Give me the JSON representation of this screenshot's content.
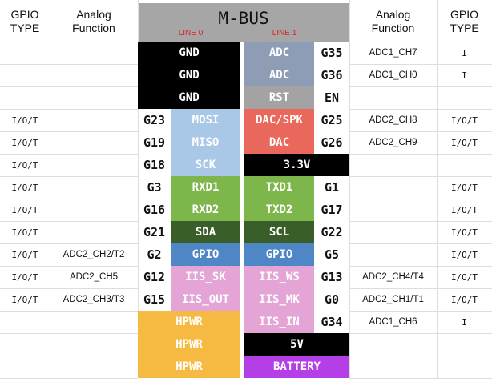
{
  "header": {
    "left_type": "GPIO\nTYPE",
    "left_analog": "Analog\nFunction",
    "title": "M-BUS",
    "line0": "LINE 0",
    "line1": "LINE 1",
    "right_analog": "Analog\nFunction",
    "right_type": "GPIO\nTYPE"
  },
  "rows": [
    {
      "left_pin": "GND",
      "left_color": "#000000",
      "right_pin": "ADC",
      "right_color": "#8e9cb6",
      "right_gpio": "G35",
      "right_analog": "ADC1_CH7",
      "right_type": "I"
    },
    {
      "left_pin": "GND",
      "left_color": "#000000",
      "right_pin": "ADC",
      "right_color": "#8e9cb6",
      "right_gpio": "G36",
      "right_analog": "ADC1_CH0",
      "right_type": "I"
    },
    {
      "left_pin": "GND",
      "left_color": "#000000",
      "right_pin": "RST",
      "right_color": "#a3a3a3",
      "right_gpio": "EN"
    },
    {
      "left_type": "I/O/T",
      "left_gpio": "G23",
      "left_pin": "MOSI",
      "left_color": "#a9c8e8",
      "right_pin": "DAC/SPK",
      "right_color": "#ea675b",
      "right_gpio": "G25",
      "right_analog": "ADC2_CH8",
      "right_type": "I/O/T"
    },
    {
      "left_type": "I/O/T",
      "left_gpio": "G19",
      "left_pin": "MISO",
      "left_color": "#a9c8e8",
      "right_pin": "DAC",
      "right_color": "#ea675b",
      "right_gpio": "G26",
      "right_analog": "ADC2_CH9",
      "right_type": "I/O/T"
    },
    {
      "left_type": "I/O/T",
      "left_gpio": "G18",
      "left_pin": "SCK",
      "left_color": "#a9c8e8",
      "right_pin": "3.3V",
      "right_color": "#000000"
    },
    {
      "left_type": "I/O/T",
      "left_gpio": "G3",
      "left_pin": "RXD1",
      "left_color": "#7db64b",
      "right_pin": "TXD1",
      "right_color": "#7db64b",
      "right_gpio": "G1",
      "right_type": "I/O/T"
    },
    {
      "left_type": "I/O/T",
      "left_gpio": "G16",
      "left_pin": "RXD2",
      "left_color": "#7db64b",
      "right_pin": "TXD2",
      "right_color": "#7db64b",
      "right_gpio": "G17",
      "right_type": "I/O/T"
    },
    {
      "left_type": "I/O/T",
      "left_gpio": "G21",
      "left_pin": "SDA",
      "left_color": "#3a5e2a",
      "right_pin": "SCL",
      "right_color": "#3a5e2a",
      "right_gpio": "G22",
      "right_type": "I/O/T"
    },
    {
      "left_type": "I/O/T",
      "left_analog": "ADC2_CH2/T2",
      "left_gpio": "G2",
      "left_pin": "GPIO",
      "left_color": "#4f86c6",
      "right_pin": "GPIO",
      "right_color": "#4f86c6",
      "right_gpio": "G5",
      "right_type": "I/O/T"
    },
    {
      "left_type": "I/O/T",
      "left_analog": "ADC2_CH5",
      "left_gpio": "G12",
      "left_pin": "IIS_SK",
      "left_color": "#e4a5d6",
      "right_pin": "IIS_WS",
      "right_color": "#e4a5d6",
      "right_gpio": "G13",
      "right_analog": "ADC2_CH4/T4",
      "right_type": "I/O/T"
    },
    {
      "left_type": "I/O/T",
      "left_analog": "ADC2_CH3/T3",
      "left_gpio": "G15",
      "left_pin": "IIS_OUT",
      "left_color": "#e4a5d6",
      "right_pin": "IIS_MK",
      "right_color": "#e4a5d6",
      "right_gpio": "G0",
      "right_analog": "ADC2_CH1/T1",
      "right_type": "I/O/T"
    },
    {
      "left_pin": "HPWR",
      "left_color": "#f6ba42",
      "right_pin": "IIS_IN",
      "right_color": "#e4a5d6",
      "right_gpio": "G34",
      "right_analog": "ADC1_CH6",
      "right_type": "I"
    },
    {
      "left_pin": "HPWR",
      "left_color": "#f6ba42",
      "right_pin": "5V",
      "right_color": "#000000"
    },
    {
      "left_pin": "HPWR",
      "left_color": "#f6ba42",
      "right_pin": "BATTERY",
      "right_color": "#b43fe6"
    }
  ]
}
